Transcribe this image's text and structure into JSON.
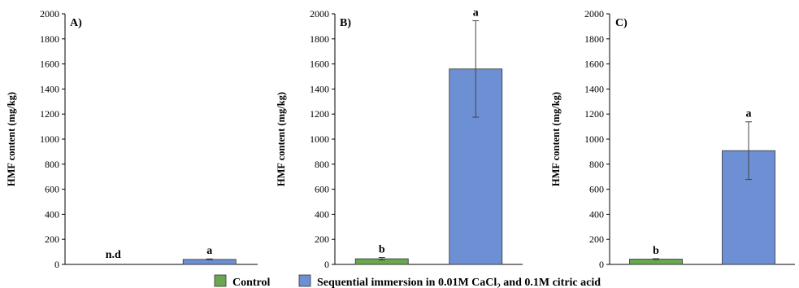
{
  "chart_data": [
    {
      "type": "bar",
      "panel_label": "A)",
      "ylabel": "HMF content (mg/kg)",
      "ylim": [
        0,
        2000
      ],
      "yticks": [
        0,
        200,
        400,
        600,
        800,
        1000,
        1200,
        1400,
        1600,
        1800,
        2000
      ],
      "grid": false,
      "series": [
        {
          "name": "Control",
          "color": "#6aa84f",
          "value": null,
          "error": null,
          "label": "n.d"
        },
        {
          "name": "Sequential immersion in 0.01M CaCl2 and 0.1M citric acid",
          "color": "#6d8fd3",
          "value": 40,
          "error": 4,
          "label": "a"
        }
      ]
    },
    {
      "type": "bar",
      "panel_label": "B)",
      "ylabel": "HMF content (mg/kg)",
      "ylim": [
        0,
        2000
      ],
      "yticks": [
        0,
        200,
        400,
        600,
        800,
        1000,
        1200,
        1400,
        1600,
        1800,
        2000
      ],
      "grid": false,
      "series": [
        {
          "name": "Control",
          "color": "#6aa84f",
          "value": 45,
          "error": 10,
          "label": "b"
        },
        {
          "name": "Sequential immersion in 0.01M CaCl2 and 0.1M citric acid",
          "color": "#6d8fd3",
          "value": 1560,
          "error": 385,
          "label": "a"
        }
      ]
    },
    {
      "type": "bar",
      "panel_label": "C)",
      "ylabel": "HMF content (mg/kg)",
      "ylim": [
        0,
        2000
      ],
      "yticks": [
        0,
        200,
        400,
        600,
        800,
        1000,
        1200,
        1400,
        1600,
        1800,
        2000
      ],
      "grid": false,
      "series": [
        {
          "name": "Control",
          "color": "#6aa84f",
          "value": 42,
          "error": 4,
          "label": "b"
        },
        {
          "name": "Sequential immersion in 0.01M CaCl2 and 0.1M citric acid",
          "color": "#6d8fd3",
          "value": 908,
          "error": 230,
          "label": "a"
        }
      ]
    }
  ],
  "legend": {
    "position": "bottom",
    "items": [
      {
        "label_text": "Control",
        "color": "#6aa84f"
      },
      {
        "label_prefix": "Sequential immersion in 0.01M CaCl",
        "label_subscript": "2",
        "label_suffix": " and 0.1M citric acid",
        "color": "#6d8fd3"
      }
    ]
  }
}
